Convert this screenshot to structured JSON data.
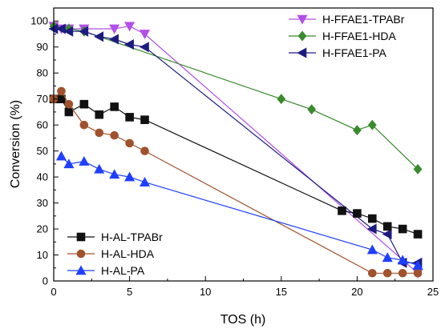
{
  "chart_data": {
    "type": "line",
    "xlabel": "TOS (h)",
    "ylabel": "Conversion (%)",
    "xlim": [
      0,
      25
    ],
    "ylim": [
      0,
      105
    ],
    "xticks": [
      0,
      5,
      10,
      15,
      20,
      25
    ],
    "yticks": [
      0,
      10,
      20,
      30,
      40,
      50,
      60,
      70,
      80,
      90,
      100
    ],
    "grid": false,
    "legends": [
      {
        "placement": "top-right",
        "series": [
          "H-FFAE1-TPABr",
          "H-FFAE1-HDA",
          "H-FFAE1-PA"
        ]
      },
      {
        "placement": "bottom-left",
        "series": [
          "H-AL-TPABr",
          "H-AL-HDA",
          "H-AL-PA"
        ]
      }
    ],
    "series": [
      {
        "name": "H-FFAE1-TPABr",
        "color": "#b34fe8",
        "marker": "triangle-down",
        "x": [
          0,
          0.5,
          1,
          2,
          4,
          5,
          6,
          24
        ],
        "y": [
          98,
          97,
          97,
          97,
          97,
          98,
          95,
          3
        ]
      },
      {
        "name": "H-FFAE1-HDA",
        "color": "#3a8a2e",
        "marker": "diamond",
        "x": [
          0,
          1,
          2,
          15,
          17,
          20,
          21,
          24
        ],
        "y": [
          98,
          97,
          96,
          70,
          66,
          58,
          60,
          43
        ]
      },
      {
        "name": "H-FFAE1-PA",
        "color": "#1c1c80",
        "marker": "triangle-left",
        "x": [
          0,
          0.5,
          1,
          2,
          3,
          4,
          5,
          6,
          21,
          22,
          23,
          24
        ],
        "y": [
          97,
          97,
          96,
          96,
          94,
          93,
          91,
          90,
          20,
          18,
          7,
          7
        ]
      },
      {
        "name": "H-AL-TPABr",
        "color": "#111111",
        "marker": "square",
        "x": [
          0,
          0.5,
          1,
          2,
          3,
          4,
          5,
          6,
          19,
          20,
          21,
          22,
          23,
          24
        ],
        "y": [
          70,
          70,
          65,
          68,
          64,
          67,
          63,
          62,
          27,
          26,
          24,
          21,
          20,
          18
        ]
      },
      {
        "name": "H-AL-HDA",
        "color": "#a0522d",
        "marker": "circle",
        "x": [
          0,
          0.5,
          1,
          2,
          3,
          4,
          5,
          6,
          21,
          22,
          23,
          24
        ],
        "y": [
          70,
          73,
          68,
          60,
          57,
          56,
          53,
          50,
          3,
          3,
          3,
          3
        ]
      },
      {
        "name": "H-AL-PA",
        "color": "#1f3fff",
        "marker": "triangle-up",
        "x": [
          0.5,
          1,
          2,
          3,
          4,
          5,
          6,
          21,
          22,
          23,
          24
        ],
        "y": [
          48,
          45,
          46,
          43,
          41,
          40,
          38,
          12,
          9,
          8,
          6
        ]
      }
    ]
  }
}
